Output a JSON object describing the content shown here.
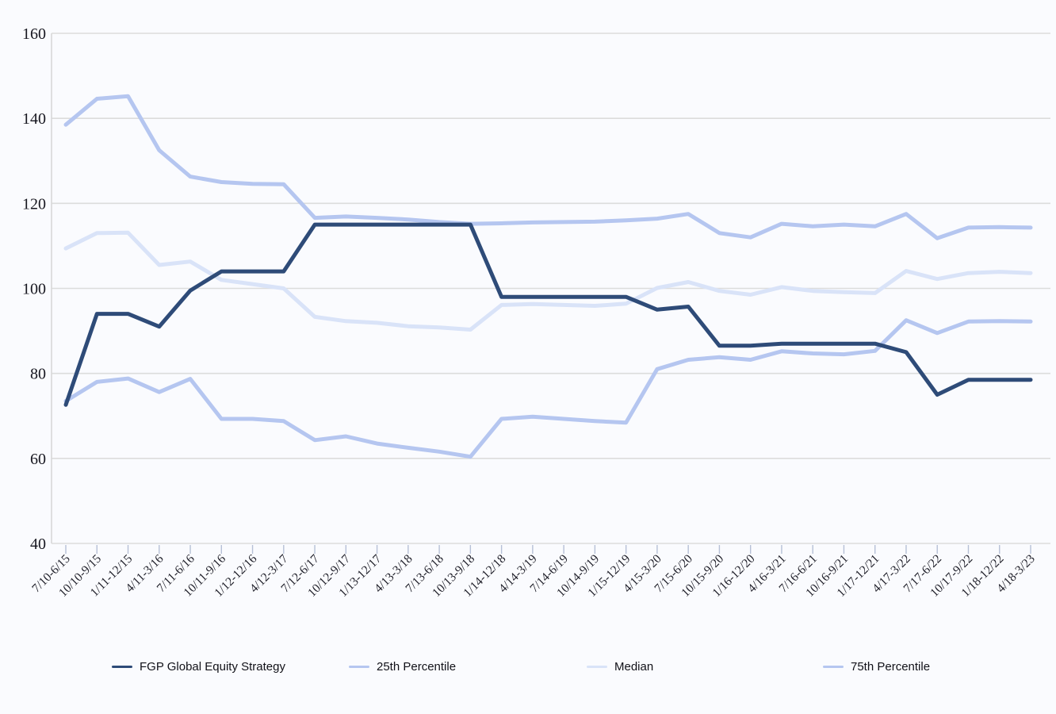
{
  "chart_data": {
    "type": "line",
    "title": "",
    "xlabel": "",
    "ylabel": "",
    "ylim": [
      40,
      160
    ],
    "y_ticks": [
      40,
      60,
      80,
      100,
      120,
      140,
      160
    ],
    "grid": true,
    "legend_position": "bottom",
    "categories": [
      "7/10-6/15",
      "10/10-9/15",
      "1/11-12/15",
      "4/11-3/16",
      "7/11-6/16",
      "10/11-9/16",
      "1/12-12/16",
      "4/12-3/17",
      "7/12-6/17",
      "10/12-9/17",
      "1/13-12/17",
      "4/13-3/18",
      "7/13-6/18",
      "10/13-9/18",
      "1/14-12/18",
      "4/14-3/19",
      "7/14-6/19",
      "10/14-9/19",
      "1/15-12/19",
      "4/15-3/20",
      "7/15-6/20",
      "10/15-9/20",
      "1/16-12/20",
      "4/16-3/21",
      "7/16-6/21",
      "10/16-9/21",
      "1/17-12/21",
      "4/17-3/22",
      "7/17-6/22",
      "10/17-9/22",
      "1/18-12/22",
      "4/18-3/23"
    ],
    "series": [
      {
        "name": "FGP Global Equity Strategy",
        "color": "#2e4b78",
        "stroke_width": 5,
        "values": [
          72.6,
          94,
          94,
          91,
          99.5,
          104,
          104,
          104,
          115,
          115,
          115,
          115,
          115,
          115,
          98,
          98,
          98,
          98,
          98,
          95,
          95.7,
          86.5,
          86.5,
          87,
          87,
          87,
          87,
          85,
          75,
          78.5,
          78.5,
          78.5
        ]
      },
      {
        "name": "25th Percentile",
        "color": "#b5c6f0",
        "stroke_width": 5,
        "values": [
          138.5,
          144.6,
          145.2,
          132.5,
          126.3,
          125,
          124.6,
          124.5,
          116.6,
          116.9,
          116.6,
          116.2,
          115.6,
          115.2,
          115.3,
          115.5,
          115.6,
          115.7,
          116,
          116.4,
          117.5,
          113,
          112,
          115.2,
          114.6,
          115,
          114.6,
          117.5,
          111.8,
          114.3,
          114.4,
          114.3
        ]
      },
      {
        "name": "Median",
        "color": "#d9e3f8",
        "stroke_width": 5,
        "values": [
          109.4,
          113,
          113.1,
          105.5,
          106.3,
          102,
          101,
          100,
          93.3,
          92.3,
          91.9,
          91.1,
          90.8,
          90.3,
          96.1,
          96.3,
          96.1,
          95.9,
          96.4,
          100.1,
          101.5,
          99.4,
          98.5,
          100.3,
          99.4,
          99.1,
          98.9,
          104.1,
          102.2,
          103.6,
          103.9,
          103.6
        ]
      },
      {
        "name": "75th Percentile",
        "color": "#b5c6f0",
        "stroke_width": 5,
        "values": [
          73.5,
          78,
          78.8,
          75.6,
          78.7,
          69.3,
          69.3,
          68.8,
          64.3,
          65.2,
          63.5,
          62.5,
          61.6,
          60.4,
          69.3,
          69.8,
          69.3,
          68.8,
          68.4,
          81,
          83.2,
          83.8,
          83.2,
          85.2,
          84.7,
          84.5,
          85.3,
          92.5,
          89.5,
          92.2,
          92.3,
          92.2
        ]
      }
    ]
  },
  "layout_colors": {
    "background": "#fafbfe",
    "gridline": "#dcdcdc",
    "axis_line": "#d8d8d8",
    "tick_mark": "#b6c0d6",
    "accent_dark": "#2e4b78",
    "accent_light": "#b5c6f0",
    "accent_lightest": "#d9e3f8"
  }
}
